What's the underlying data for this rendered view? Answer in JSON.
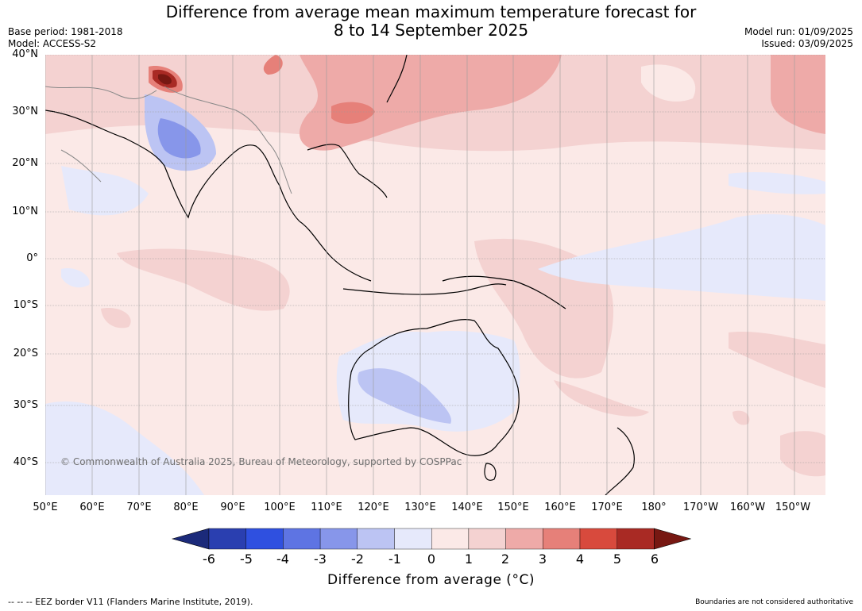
{
  "title_line1": "Difference from average mean maximum temperature forecast for",
  "title_line2": "8 to 14 September 2025",
  "base_period": "Base period: 1981-2018",
  "model": "Model: ACCESS-S2",
  "model_run": "Model run: 01/09/2025",
  "issued": "Issued: 03/09/2025",
  "copyright": "© Commonwealth of Australia 2025, Bureau of Meteorology, supported by COSPPac",
  "lat_labels": [
    "40°N",
    "30°N",
    "20°N",
    "10°N",
    "0°",
    "10°S",
    "20°S",
    "30°S",
    "40°S"
  ],
  "lon_labels": [
    "50°E",
    "60°E",
    "70°E",
    "80°E",
    "90°E",
    "100°E",
    "110°E",
    "120°E",
    "130°E",
    "140°E",
    "150°E",
    "160°E",
    "170°E",
    "180°",
    "170°W",
    "160°W",
    "150°W"
  ],
  "colorbar": {
    "ticks": [
      "-6",
      "-5",
      "-4",
      "-3",
      "-2",
      "-1",
      "0",
      "1",
      "2",
      "3",
      "4",
      "5",
      "6"
    ],
    "colors": [
      "#1b2a7a",
      "#2a3fb0",
      "#2f50e0",
      "#5e74e3",
      "#8796ea",
      "#bcc4f3",
      "#e6e9fb",
      "#fbe9e7",
      "#f4d2d1",
      "#eeaaa8",
      "#e68079",
      "#d84a3d",
      "#a92a24",
      "#771812"
    ],
    "label": "Difference from average (°C)"
  },
  "footer_left": "--  --  -- EEZ border V11 (Flanders Marine Institute, 2019).",
  "footer_right": "Boundaries are not considered authoritative"
}
